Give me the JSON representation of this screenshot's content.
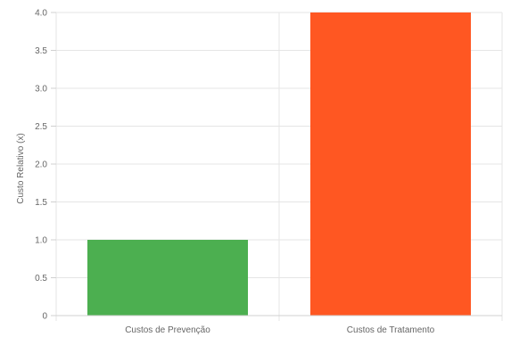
{
  "chart_data": {
    "type": "bar",
    "title": "",
    "xlabel": "",
    "ylabel": "Custo Relativo (x)",
    "categories": [
      "Custos de Prevenção",
      "Custos de Tratamento"
    ],
    "values": [
      1.0,
      4.0
    ],
    "colors": [
      "#4CAF50",
      "#FF5722"
    ],
    "ylim": [
      0,
      4.0
    ],
    "yticks": [
      "0",
      "0.5",
      "1.0",
      "1.5",
      "2.0",
      "2.5",
      "3.0",
      "3.5",
      "4.0"
    ],
    "grid": true,
    "legend": "none"
  }
}
